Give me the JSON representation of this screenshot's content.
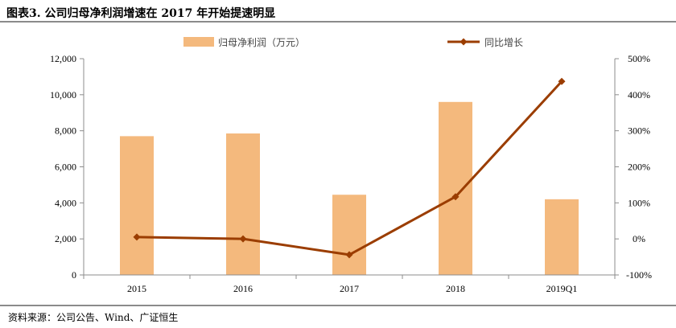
{
  "figure": {
    "title": "图表3.    公司归母净利润增速在 2017 年开始提速明显",
    "source": "资料来源：公司公告、Wind、广证恒生"
  },
  "colors": {
    "bar": "#f4b97d",
    "line": "#9b3d00",
    "axis": "#8c8c8c"
  },
  "chart_data": {
    "type": "bar",
    "categories": [
      "2015",
      "2016",
      "2017",
      "2018",
      "2019Q1"
    ],
    "series": [
      {
        "name": "归母净利润（万元）",
        "type": "bar",
        "axis": "left",
        "values": [
          7700,
          7850,
          4450,
          9600,
          4200
        ]
      },
      {
        "name": "同比增长",
        "type": "line",
        "axis": "right",
        "marker": "diamond",
        "values": [
          5,
          0,
          -44,
          117,
          437
        ]
      }
    ],
    "y_left": {
      "range": [
        0,
        12000
      ],
      "ticks": [
        "0",
        "2,000",
        "4,000",
        "6,000",
        "8,000",
        "10,000",
        "12,000"
      ]
    },
    "y_right": {
      "range": [
        -100,
        500
      ],
      "ticks": [
        "-100%",
        "0%",
        "100%",
        "200%",
        "300%",
        "400%",
        "500%"
      ]
    },
    "legend_position": "top",
    "grid": false
  }
}
